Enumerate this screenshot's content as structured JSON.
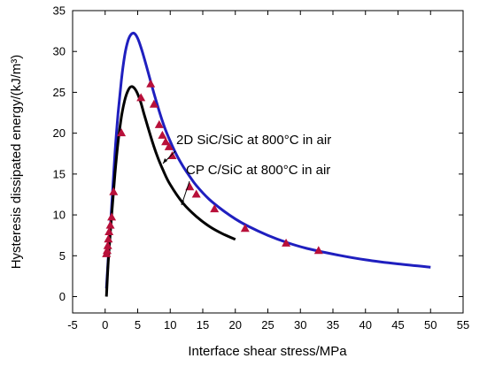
{
  "chart_data": {
    "type": "line",
    "title": "",
    "xlabel": "Interface shear stress/MPa",
    "ylabel": "Hysteresis dissipated energy/(kJ/m³)",
    "xlim": [
      -5,
      55
    ],
    "ylim": [
      -2,
      35
    ],
    "xticks": [
      -5,
      0,
      5,
      10,
      15,
      20,
      25,
      30,
      35,
      40,
      45,
      50,
      55
    ],
    "yticks": [
      0,
      5,
      10,
      15,
      20,
      25,
      30,
      35
    ],
    "grid": false,
    "series": [
      {
        "name": "2D SiC/SiC at 800°C in air",
        "color": "#1f1fbf",
        "x": [
          0.2,
          0.5,
          1.0,
          1.5,
          2.0,
          2.5,
          3.0,
          3.5,
          4.0,
          4.5,
          5.0,
          5.5,
          6.0,
          7.0,
          8.0,
          9.0,
          10.0,
          11.0,
          12.0,
          13.0,
          14.0,
          16.0,
          18.0,
          20.0,
          22.0,
          25.0,
          28.0,
          31.0,
          35.0,
          40.0,
          45.0,
          50.0
        ],
        "y": [
          1.0,
          5.0,
          11.0,
          17.5,
          22.5,
          26.5,
          29.5,
          31.3,
          32.1,
          32.2,
          31.6,
          30.5,
          29.2,
          26.3,
          23.5,
          21.0,
          19.0,
          17.3,
          15.9,
          14.7,
          13.6,
          11.9,
          10.6,
          9.5,
          8.6,
          7.5,
          6.6,
          5.9,
          5.2,
          4.5,
          4.0,
          3.6
        ]
      },
      {
        "name": "CP C/SiC at 800°C in air",
        "color": "#000000",
        "x": [
          0.2,
          0.5,
          1.0,
          1.5,
          2.0,
          2.5,
          3.0,
          3.5,
          4.0,
          4.5,
          5.0,
          5.5,
          6.0,
          7.0,
          8.0,
          9.0,
          10.0,
          12.0,
          14.0,
          16.0,
          18.0,
          20.0
        ],
        "y": [
          0.0,
          4.5,
          10.0,
          15.0,
          19.0,
          22.0,
          24.0,
          25.2,
          25.7,
          25.5,
          24.8,
          23.7,
          22.3,
          19.6,
          17.2,
          15.3,
          13.7,
          11.4,
          9.8,
          8.6,
          7.7,
          7.0
        ]
      }
    ],
    "markers": {
      "color": "#b8103a",
      "x": [
        0.2,
        0.3,
        0.4,
        0.5,
        0.6,
        0.8,
        1.0,
        1.3,
        2.5,
        5.5,
        7.0,
        7.5,
        8.3,
        8.8,
        9.3,
        9.8,
        10.3,
        13.0,
        14.0,
        16.8,
        21.5,
        27.8,
        32.8
      ],
      "y": [
        5.2,
        5.6,
        6.2,
        7.0,
        7.9,
        8.7,
        9.7,
        12.8,
        20.0,
        24.3,
        26.0,
        23.5,
        21.0,
        19.7,
        18.9,
        18.3,
        17.2,
        13.4,
        12.5,
        10.7,
        8.3,
        6.5,
        5.6
      ]
    },
    "annotations": [
      {
        "text": "2D SiC/SiC at 800°C in air",
        "points_to_series": 0
      },
      {
        "text": "CP C/SiC at 800°C in air",
        "points_to_series": 1
      }
    ]
  }
}
